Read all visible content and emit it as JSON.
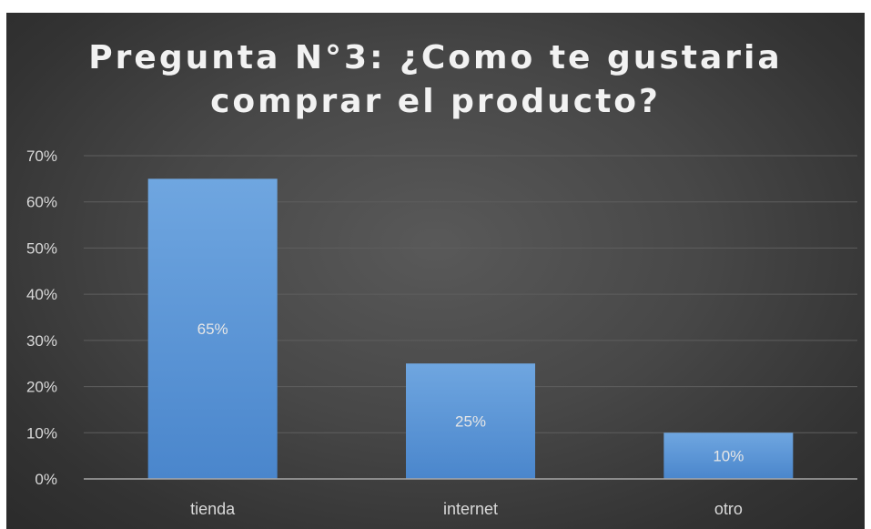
{
  "chart_data": {
    "type": "bar",
    "title": "Pregunta N°3: ¿Como te gustaria comprar el producto?",
    "title_lines": [
      "Pregunta N°3: ¿Como te gustaria",
      "comprar el producto?"
    ],
    "categories": [
      "tienda",
      "internet",
      "otro"
    ],
    "values": [
      65,
      25,
      10
    ],
    "data_labels": [
      "65%",
      "25%",
      "10%"
    ],
    "y_ticks": [
      0,
      10,
      20,
      30,
      40,
      50,
      60,
      70
    ],
    "y_tick_labels": [
      "0%",
      "10%",
      "20%",
      "30%",
      "40%",
      "50%",
      "60%",
      "70%"
    ],
    "ylim": [
      0,
      70
    ],
    "xlabel": "",
    "ylabel": "",
    "grid": true,
    "legend": "none",
    "colors": {
      "bar_top": "#6fa6e0",
      "bar_bottom": "#4a86cc",
      "gridline": "#5e5e5e",
      "axis": "#a6a6a6"
    }
  }
}
